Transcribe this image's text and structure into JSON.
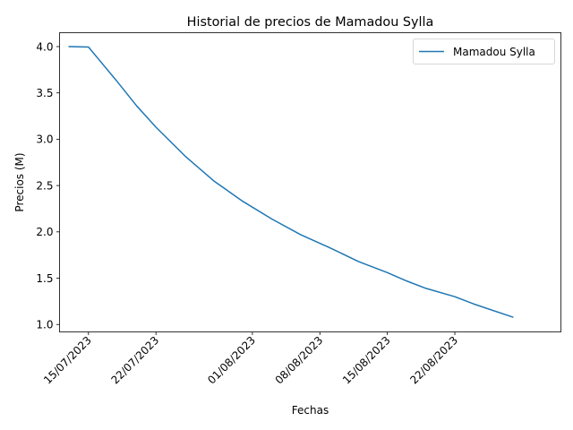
{
  "chart_data": {
    "type": "line",
    "title": "Historial de precios de Mamadou Sylla",
    "xlabel": "Fechas",
    "ylabel": "Precios (M)",
    "x_type": "date",
    "xlim": [
      "2023-07-12",
      "2023-09-02"
    ],
    "ylim": [
      0.92,
      4.15
    ],
    "x_ticks": [
      "2023-07-15",
      "2023-07-22",
      "2023-08-01",
      "2023-08-08",
      "2023-08-15",
      "2023-08-22"
    ],
    "x_tick_labels": [
      "15/07/2023",
      "22/07/2023",
      "01/08/2023",
      "08/08/2023",
      "15/08/2023",
      "22/08/2023"
    ],
    "y_ticks": [
      1.0,
      1.5,
      2.0,
      2.5,
      3.0,
      3.5,
      4.0
    ],
    "y_tick_labels": [
      "1.0",
      "1.5",
      "2.0",
      "2.5",
      "3.0",
      "3.5",
      "4.0"
    ],
    "grid": false,
    "legend_position": "top-right",
    "series": [
      {
        "name": "Mamadou Sylla",
        "color": "#1f77b4",
        "x": [
          "2023-07-13",
          "2023-07-15",
          "2023-07-16",
          "2023-07-18",
          "2023-07-20",
          "2023-07-22",
          "2023-07-25",
          "2023-07-28",
          "2023-07-31",
          "2023-08-03",
          "2023-08-06",
          "2023-08-09",
          "2023-08-12",
          "2023-08-15",
          "2023-08-17",
          "2023-08-19",
          "2023-08-22",
          "2023-08-24",
          "2023-08-28"
        ],
        "y": [
          4.0,
          3.995,
          3.87,
          3.62,
          3.36,
          3.13,
          2.82,
          2.55,
          2.33,
          2.14,
          1.97,
          1.83,
          1.68,
          1.56,
          1.47,
          1.39,
          1.3,
          1.22,
          1.08
        ]
      }
    ]
  }
}
